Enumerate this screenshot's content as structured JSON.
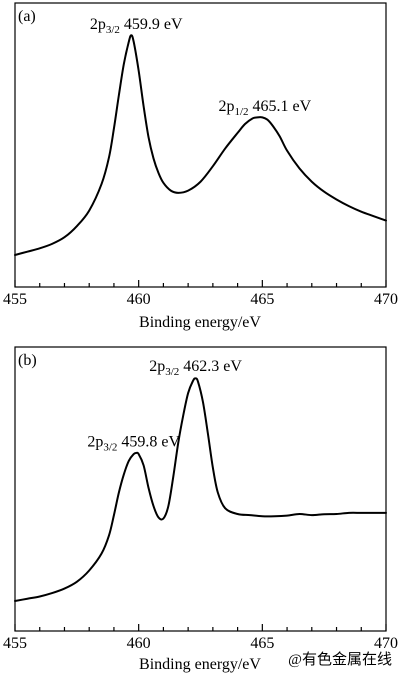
{
  "chart_data": [
    {
      "type": "line",
      "panel_label": "(a)",
      "xlabel": "Binding energy/eV",
      "ylabel": "",
      "xlim": [
        455,
        470
      ],
      "ylim": [
        0,
        100
      ],
      "y_tick_labels": false,
      "xticks": [
        455,
        460,
        465,
        470
      ],
      "xtick_labels": [
        "455",
        "460",
        "465",
        "470"
      ],
      "grid": false,
      "legend": "none",
      "series": [
        {
          "x": [
            455.0,
            455.5,
            456.0,
            456.5,
            457.0,
            457.5,
            458.0,
            458.5,
            458.8,
            459.0,
            459.2,
            459.4,
            459.6,
            459.7,
            459.8,
            460.0,
            460.2,
            460.4,
            460.6,
            460.8,
            461.0,
            461.3,
            461.6,
            462.0,
            462.5,
            463.0,
            463.5,
            464.0,
            464.3,
            464.6,
            464.8,
            465.0,
            465.2,
            465.4,
            465.7,
            466.0,
            466.5,
            467.0,
            467.5,
            468.0,
            468.5,
            469.0,
            469.5,
            470.0
          ],
          "y": [
            0.0,
            1.5,
            3.0,
            5.0,
            8.0,
            13.0,
            20.0,
            32.0,
            44.0,
            57.0,
            72.0,
            86.0,
            96.0,
            99.0,
            96.0,
            83.0,
            67.0,
            53.0,
            43.5,
            37.0,
            32.5,
            29.0,
            28.0,
            29.0,
            33.0,
            40.0,
            48.0,
            55.0,
            59.0,
            61.5,
            62.0,
            62.0,
            61.0,
            58.5,
            53.5,
            47.0,
            39.0,
            33.0,
            28.5,
            25.0,
            22.0,
            19.5,
            17.5,
            15.5
          ]
        }
      ],
      "annotations": [
        {
          "main": "2p",
          "sub": "3/2",
          "value": "459.9 eV",
          "x": 459.9,
          "y": 101
        },
        {
          "main": "2p",
          "sub": "1/2",
          "value": "465.1 eV",
          "x": 465.1,
          "y": 64
        }
      ]
    },
    {
      "type": "line",
      "panel_label": "(b)",
      "xlabel": "Binding energy/eV",
      "ylabel": "",
      "xlim": [
        455,
        470
      ],
      "ylim": [
        0,
        100
      ],
      "y_tick_labels": false,
      "xticks": [
        455,
        460,
        465,
        470
      ],
      "xtick_labels": [
        "455",
        "460",
        "465",
        "470"
      ],
      "grid": false,
      "legend": "none",
      "series": [
        {
          "x": [
            455.0,
            455.5,
            456.0,
            456.5,
            457.0,
            457.5,
            458.0,
            458.5,
            458.8,
            459.0,
            459.2,
            459.4,
            459.6,
            459.8,
            459.9,
            460.0,
            460.2,
            460.4,
            460.6,
            460.8,
            461.0,
            461.2,
            461.4,
            461.6,
            461.8,
            462.0,
            462.2,
            462.3,
            462.4,
            462.6,
            462.8,
            463.0,
            463.2,
            463.5,
            464.0,
            464.5,
            465.0,
            465.5,
            466.0,
            466.5,
            467.0,
            467.5,
            468.0,
            468.5,
            469.0,
            469.5,
            470.0
          ],
          "y": [
            0.0,
            1.0,
            2.0,
            3.5,
            5.5,
            8.5,
            13.5,
            21.0,
            29.0,
            38.0,
            48.0,
            56.0,
            62.0,
            65.0,
            65.5,
            65.0,
            60.0,
            50.0,
            42.0,
            37.0,
            36.5,
            42.0,
            55.0,
            70.0,
            82.0,
            92.0,
            97.5,
            98.5,
            97.0,
            88.0,
            74.0,
            59.0,
            48.0,
            41.0,
            38.5,
            38.0,
            37.5,
            37.5,
            37.8,
            38.5,
            38.0,
            38.4,
            38.5,
            39.0,
            39.0,
            39.0,
            39.0
          ]
        }
      ],
      "annotations": [
        {
          "main": "2p",
          "sub": "3/2",
          "value": "459.8 eV",
          "x": 459.8,
          "y": 67
        },
        {
          "main": "2p",
          "sub": "3/2",
          "value": "462.3 eV",
          "x": 462.3,
          "y": 100
        }
      ]
    }
  ],
  "watermark": "@有色金属在线",
  "colors": {
    "line": "#000000",
    "watermark": "#e9a9a9",
    "background": "#ffffff"
  }
}
